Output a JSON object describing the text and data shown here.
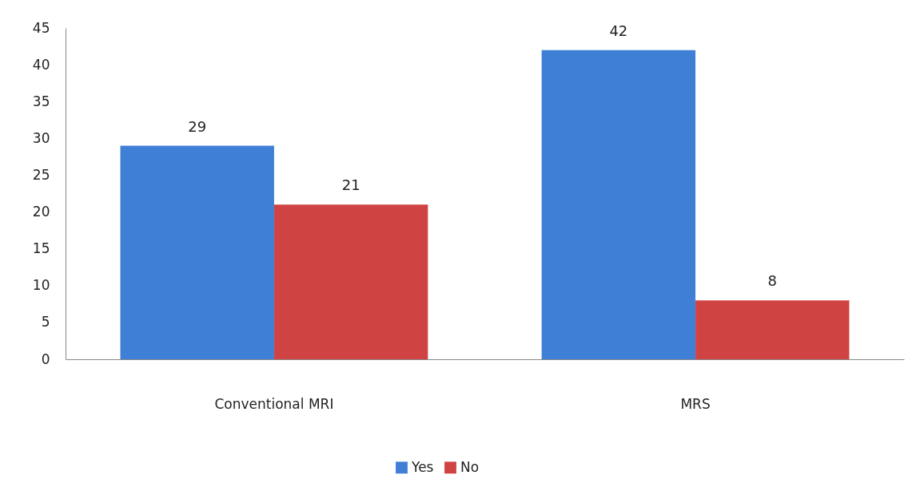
{
  "chart_data": {
    "type": "bar",
    "categories": [
      "Conventional MRI",
      "MRS"
    ],
    "series": [
      {
        "name": "Yes",
        "color": "#3f7fd6",
        "values": [
          29,
          42
        ]
      },
      {
        "name": "No",
        "color": "#d04343",
        "values": [
          21,
          8
        ]
      }
    ],
    "ylim": [
      0,
      45
    ],
    "yticks": [
      0,
      5,
      10,
      15,
      20,
      25,
      30,
      35,
      40,
      45
    ],
    "grid": false,
    "legend": "bottom",
    "data_labels": true
  }
}
